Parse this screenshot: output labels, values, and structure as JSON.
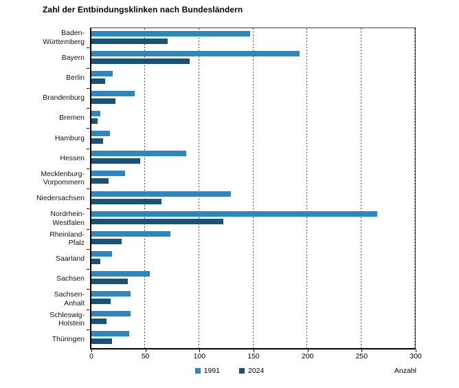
{
  "title": "Zahl der Entbindungsklinken nach Bundesländern",
  "chart_data": {
    "type": "bar",
    "orientation": "horizontal",
    "title": "Zahl der Entbindungsklinken nach Bundesländern",
    "xlabel": "Anzahl",
    "ylabel": "",
    "xlim": [
      0,
      300
    ],
    "xticks": [
      0,
      50,
      100,
      150,
      200,
      250,
      300
    ],
    "grid": "vertical-dashed",
    "legend_position": "bottom-center",
    "categories": [
      "Baden-\nWürttemberg",
      "Bayern",
      "Berlin",
      "Brandenburg",
      "Bremen",
      "Hamburg",
      "Hessen",
      "Mecklenburg-\nVorpommern",
      "Niedersachsen",
      "Nordrhein-\nWestfalen",
      "Rheinland-\nPfalz",
      "Saarland",
      "Sachsen",
      "Sachsen-\nAnhalt",
      "Schleswig-\nHolstein",
      "Thüringen"
    ],
    "series": [
      {
        "name": "1991",
        "color": "#2E86C1",
        "values": [
          147,
          193,
          20,
          40,
          8,
          17,
          88,
          31,
          129,
          265,
          73,
          19,
          54,
          36,
          36,
          35
        ]
      },
      {
        "name": "2024",
        "color": "#1A5276",
        "values": [
          71,
          91,
          13,
          22,
          6,
          11,
          45,
          16,
          65,
          122,
          28,
          8,
          34,
          18,
          14,
          19
        ]
      }
    ]
  },
  "colors": {
    "series_1991": "#2E86C1",
    "series_2024": "#1A5276",
    "gridline": "#474747",
    "axis": "#000000"
  }
}
